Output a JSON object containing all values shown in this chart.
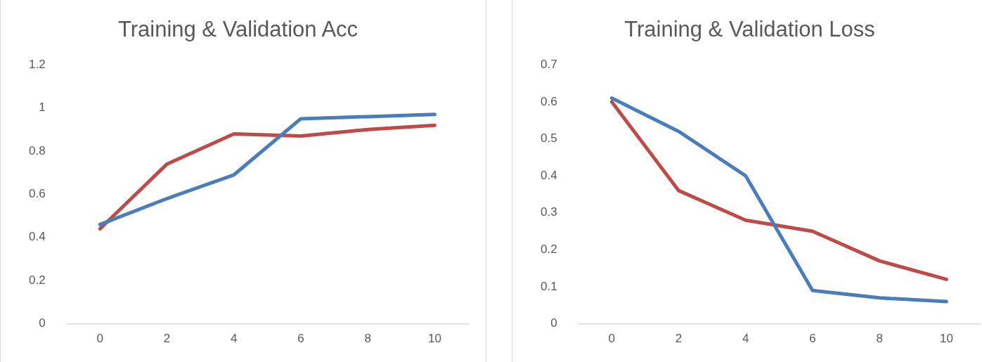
{
  "chart_data": [
    {
      "type": "line",
      "title": "Training & Validation Acc",
      "x": [
        0,
        2,
        4,
        6,
        8,
        10
      ],
      "xlim": [
        -1,
        11
      ],
      "xticks": [
        0,
        2,
        4,
        6,
        8,
        10
      ],
      "ylim": [
        0,
        1.2
      ],
      "yticks": [
        0,
        0.2,
        0.4,
        0.6,
        0.8,
        1,
        1.2
      ],
      "grid": false,
      "legend": false,
      "marker": "none",
      "line_style": "solid",
      "series": [
        {
          "color": "#4a7ebb",
          "values": [
            0.46,
            0.58,
            0.69,
            0.95,
            0.96,
            0.97
          ]
        },
        {
          "color": "#be4b48",
          "values": [
            0.44,
            0.74,
            0.88,
            0.87,
            0.9,
            0.92
          ]
        }
      ]
    },
    {
      "type": "line",
      "title": "Training & Validation Loss",
      "x": [
        0,
        2,
        4,
        6,
        8,
        10
      ],
      "xlim": [
        -1,
        11
      ],
      "xticks": [
        0,
        2,
        4,
        6,
        8,
        10
      ],
      "ylim": [
        0,
        0.7
      ],
      "yticks": [
        0,
        0.1,
        0.2,
        0.3,
        0.4,
        0.5,
        0.6,
        0.7
      ],
      "grid": false,
      "legend": false,
      "marker": "none",
      "line_style": "solid",
      "series": [
        {
          "color": "#4a7ebb",
          "values": [
            0.61,
            0.52,
            0.4,
            0.09,
            0.07,
            0.06
          ]
        },
        {
          "color": "#be4b48",
          "values": [
            0.6,
            0.36,
            0.28,
            0.25,
            0.17,
            0.12
          ]
        }
      ]
    }
  ]
}
